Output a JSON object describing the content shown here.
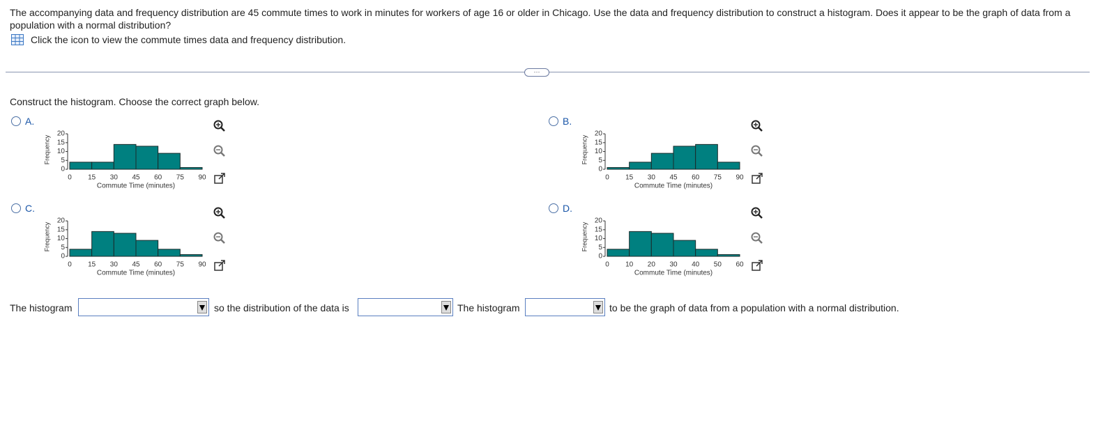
{
  "question": {
    "text": "The accompanying data and frequency distribution are 45 commute times to work in minutes for workers of age 16 or older in Chicago. Use the data and frequency distribution to construct a histogram. Does it appear to be the graph of data from a population with a normal distribution?",
    "data_link": "Click the icon to view the commute times data and frequency distribution."
  },
  "prompt": "Construct the histogram. Choose the correct graph below.",
  "options": [
    {
      "label": "A.",
      "chart": {
        "type": "histogram",
        "bins": [
          0,
          15,
          30,
          45,
          60,
          75,
          90
        ],
        "counts": [
          4,
          4,
          14,
          13,
          9,
          1
        ],
        "color": "#008080",
        "xlabel": "Commute Time (minutes)",
        "ylabel": "Frequency",
        "xlim": [
          0,
          90
        ],
        "xticks": [
          0,
          15,
          30,
          45,
          60,
          75,
          90
        ],
        "ylim": [
          0,
          22
        ],
        "yticks": [
          0,
          5,
          10,
          15,
          20
        ]
      }
    },
    {
      "label": "B.",
      "chart": {
        "type": "histogram",
        "bins": [
          0,
          15,
          30,
          45,
          60,
          75,
          90
        ],
        "counts": [
          1,
          4,
          9,
          13,
          14,
          4
        ],
        "color": "#008080",
        "xlabel": "Commute Time (minutes)",
        "ylabel": "Frequency",
        "xlim": [
          0,
          90
        ],
        "xticks": [
          0,
          15,
          30,
          45,
          60,
          75,
          90
        ],
        "ylim": [
          0,
          22
        ],
        "yticks": [
          0,
          5,
          10,
          15,
          20
        ]
      }
    },
    {
      "label": "C.",
      "chart": {
        "type": "histogram",
        "bins": [
          0,
          15,
          30,
          45,
          60,
          75,
          90
        ],
        "counts": [
          4,
          14,
          13,
          9,
          4,
          1
        ],
        "color": "#008080",
        "xlabel": "Commute Time (minutes)",
        "ylabel": "Frequency",
        "xlim": [
          0,
          90
        ],
        "xticks": [
          0,
          15,
          30,
          45,
          60,
          75,
          90
        ],
        "ylim": [
          0,
          22
        ],
        "yticks": [
          0,
          5,
          10,
          15,
          20
        ]
      }
    },
    {
      "label": "D.",
      "chart": {
        "type": "histogram",
        "bins": [
          0,
          10,
          20,
          30,
          40,
          50,
          60
        ],
        "counts": [
          4,
          14,
          13,
          9,
          4,
          1
        ],
        "color": "#008080",
        "xlabel": "Commute Time (minutes)",
        "ylabel": "Frequency",
        "xlim": [
          0,
          60
        ],
        "xticks": [
          0,
          10,
          20,
          30,
          40,
          50,
          60
        ],
        "ylim": [
          0,
          22
        ],
        "yticks": [
          0,
          5,
          10,
          15,
          20
        ]
      }
    }
  ],
  "answer": {
    "parts": [
      "The histogram",
      "so the distribution of the data is",
      "The histogram",
      "to be the graph of data from a population with a normal distribution."
    ]
  }
}
